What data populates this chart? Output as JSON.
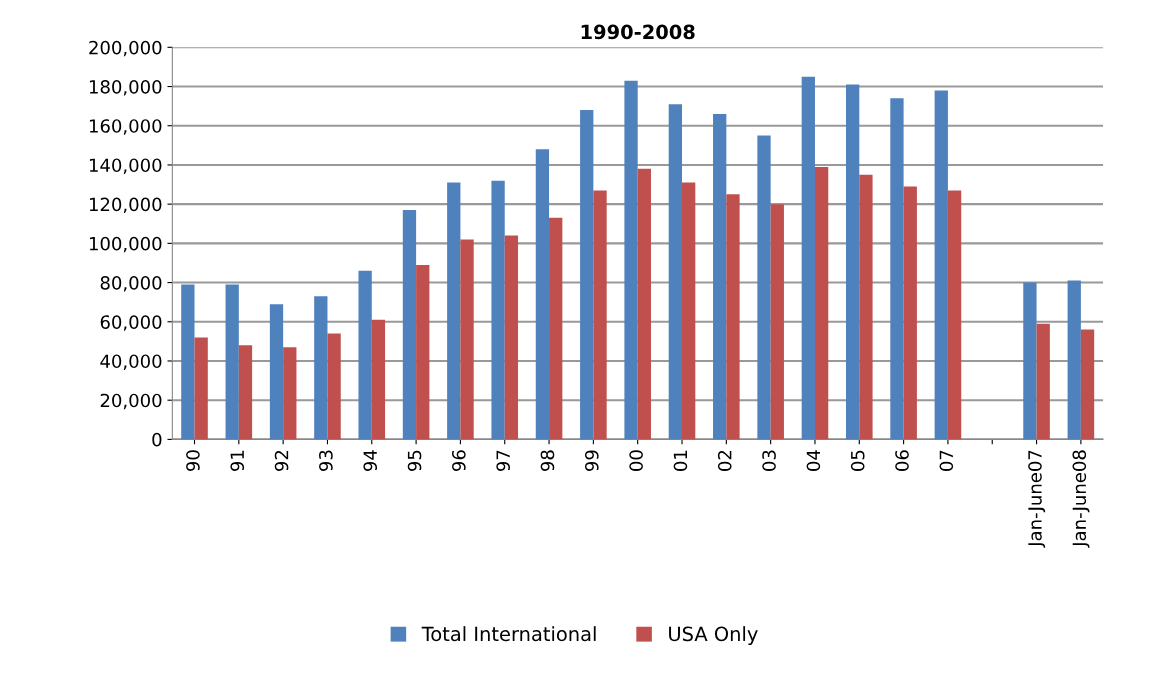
{
  "chart_data": {
    "type": "bar",
    "title": "1990-2008",
    "categories": [
      "90",
      "91",
      "92",
      "93",
      "94",
      "95",
      "96",
      "97",
      "98",
      "99",
      "00",
      "01",
      "02",
      "03",
      "04",
      "05",
      "06",
      "07",
      null,
      "Jan-June07",
      "Jan-June08"
    ],
    "series": [
      {
        "name": "Total International",
        "color": "#4f81bd",
        "values": [
          79000,
          79000,
          69000,
          73000,
          86000,
          117000,
          131000,
          132000,
          148000,
          168000,
          183000,
          171000,
          166000,
          155000,
          185000,
          181000,
          174000,
          178000,
          null,
          80000,
          81000
        ]
      },
      {
        "name": "USA Only",
        "color": "#c0504d",
        "values": [
          52000,
          48000,
          47000,
          54000,
          61000,
          89000,
          102000,
          104000,
          113000,
          127000,
          138000,
          131000,
          125000,
          120000,
          139000,
          135000,
          129000,
          127000,
          null,
          59000,
          56000
        ]
      }
    ],
    "ylim": [
      0,
      200000
    ],
    "yticks": [
      {
        "value": 0,
        "label": "0"
      },
      {
        "value": 20000,
        "label": "20,000"
      },
      {
        "value": 40000,
        "label": "40,000"
      },
      {
        "value": 60000,
        "label": "60,000"
      },
      {
        "value": 80000,
        "label": "80,000"
      },
      {
        "value": 100000,
        "label": "100,000"
      },
      {
        "value": 120000,
        "label": "120,000"
      },
      {
        "value": 140000,
        "label": "140,000"
      },
      {
        "value": 160000,
        "label": "160,000"
      },
      {
        "value": 180000,
        "label": "180,000"
      },
      {
        "value": 200000,
        "label": "200,000"
      }
    ],
    "grid": "y",
    "legend": "bottom"
  }
}
